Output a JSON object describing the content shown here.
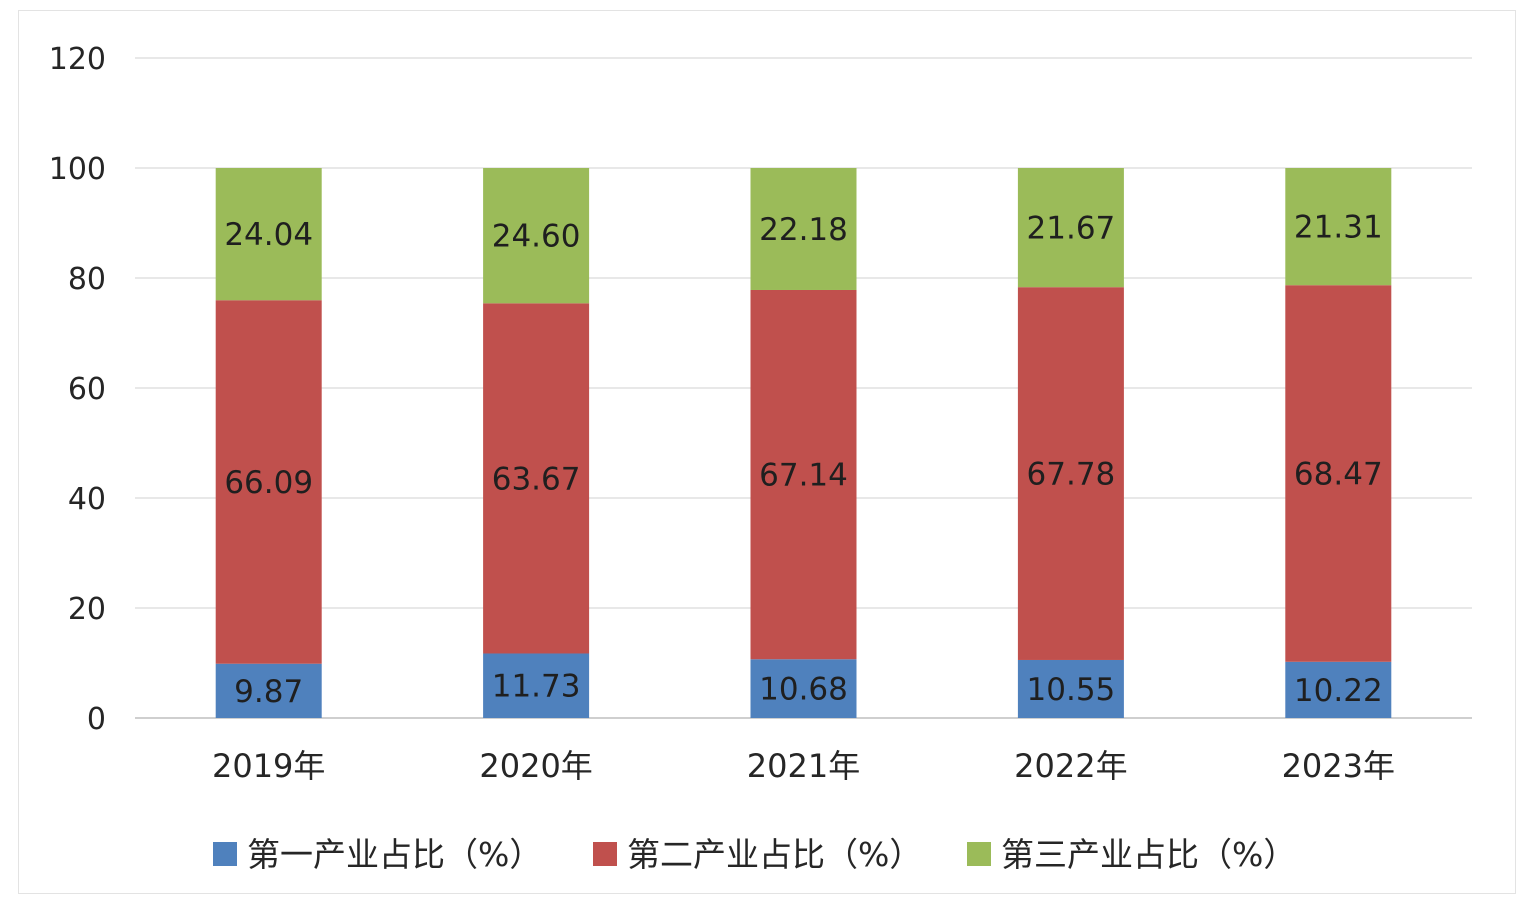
{
  "chart_data": {
    "type": "bar",
    "stacked": true,
    "categories": [
      "2019年",
      "2020年",
      "2021年",
      "2022年",
      "2023年"
    ],
    "series": [
      {
        "name": "第一产业占比（%）",
        "values": [
          9.87,
          11.73,
          10.68,
          10.55,
          10.22
        ],
        "labels": [
          "9.87",
          "11.73",
          "10.68",
          "10.55",
          "10.22"
        ],
        "color": "#4f81bd"
      },
      {
        "name": "第二产业占比（%）",
        "values": [
          66.09,
          63.67,
          67.14,
          67.78,
          68.47
        ],
        "labels": [
          "66.09",
          "63.67",
          "67.14",
          "67.78",
          "68.47"
        ],
        "color": "#c0504d"
      },
      {
        "name": "第三产业占比（%）",
        "values": [
          24.04,
          24.6,
          22.18,
          21.67,
          21.31
        ],
        "labels": [
          "24.04",
          "24.60",
          "22.18",
          "21.67",
          "21.31"
        ],
        "color": "#9bbb59"
      }
    ],
    "y_ticks": [
      "0",
      "20",
      "40",
      "60",
      "80",
      "100",
      "120"
    ],
    "ylim": [
      0,
      120
    ],
    "grid": true,
    "legend_position": "bottom",
    "title": "",
    "xlabel": "",
    "ylabel": ""
  }
}
